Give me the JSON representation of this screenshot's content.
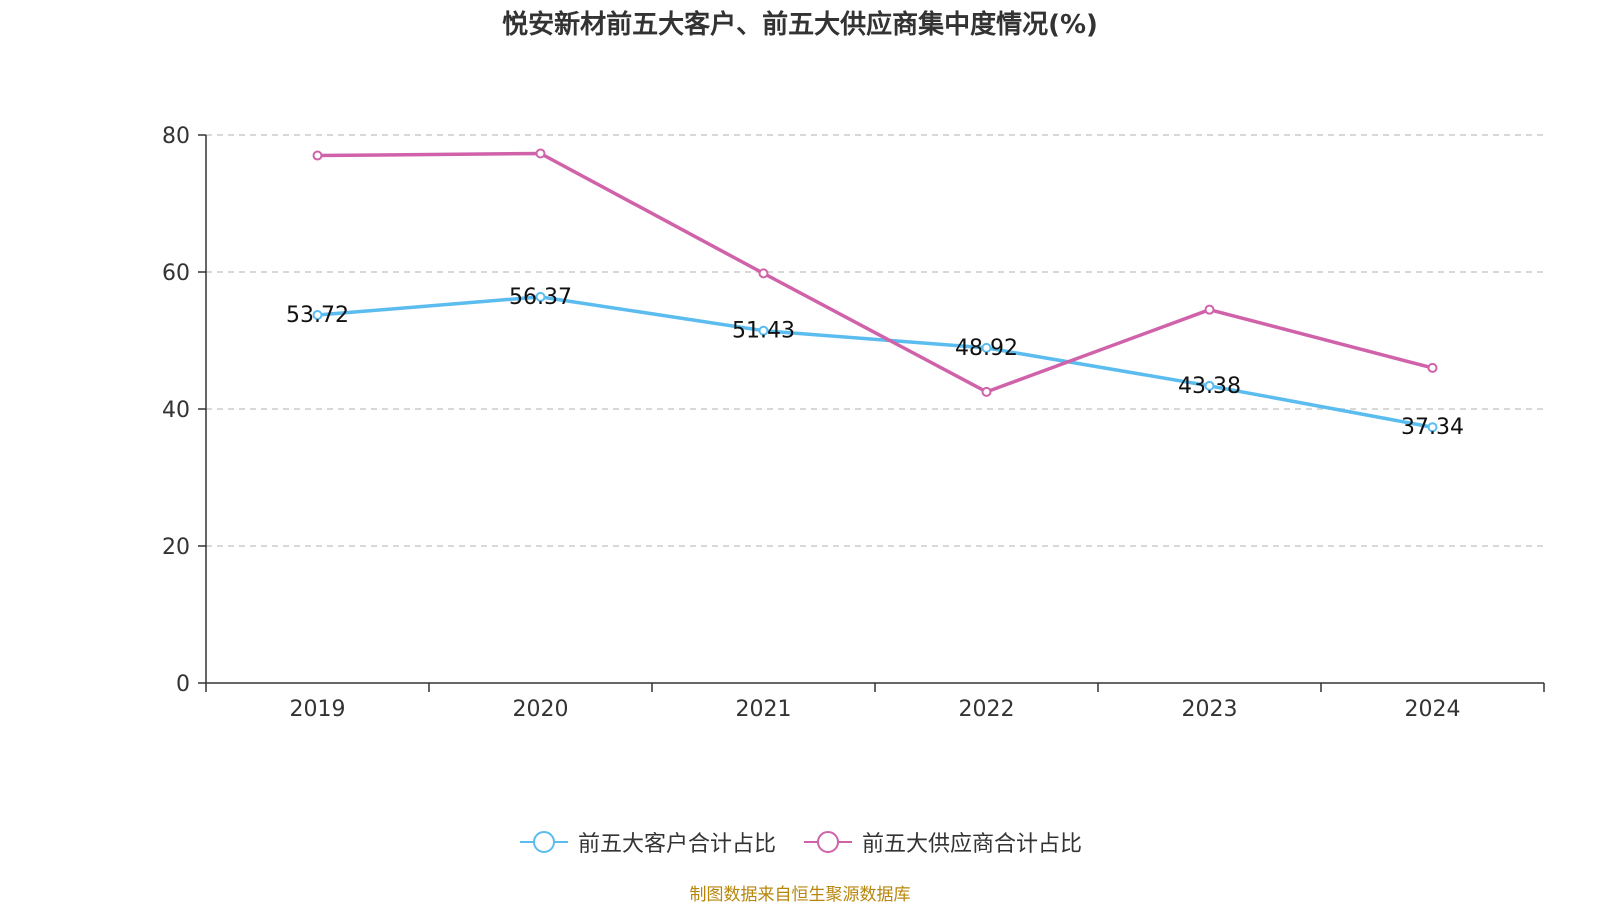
{
  "chart_data": {
    "type": "line",
    "title": "悦安新材前五大客户、前五大供应商集中度情况(%)",
    "categories": [
      "2019",
      "2020",
      "2021",
      "2022",
      "2023",
      "2024"
    ],
    "ylim": [
      0,
      80
    ],
    "yticks": [
      0,
      20,
      40,
      60,
      80
    ],
    "grid": true,
    "legend_position": "bottom",
    "series": [
      {
        "name": "前五大客户合计占比",
        "color": "#5bbcef",
        "values": [
          53.72,
          56.37,
          51.43,
          48.92,
          43.38,
          37.34
        ],
        "labels": [
          "53.72",
          "56.37",
          "51.43",
          "48.92",
          "43.38",
          "37.34"
        ]
      },
      {
        "name": "前五大供应商合计占比",
        "color": "#d062aa",
        "values": [
          77.0,
          77.3,
          59.8,
          42.5,
          54.5,
          46.0
        ]
      }
    ]
  },
  "source": "制图数据来自恒生聚源数据库"
}
